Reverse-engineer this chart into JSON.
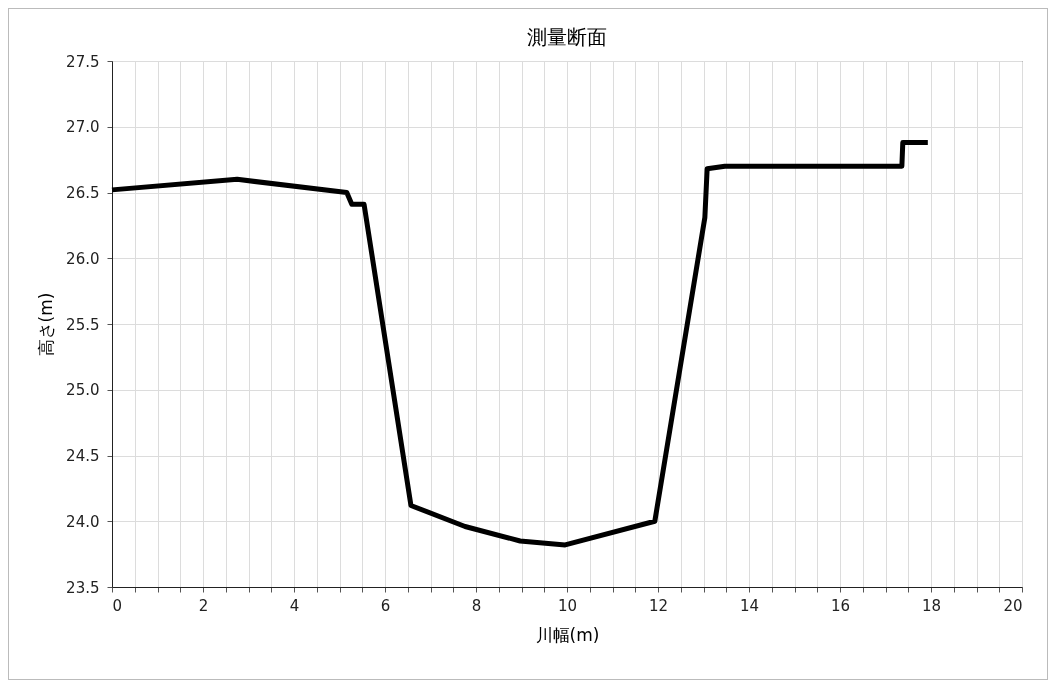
{
  "chart_data": {
    "type": "line",
    "title": "測量断面",
    "xlabel": "川幅(m)",
    "ylabel": "高さ(m)",
    "x": [
      0,
      2.75,
      5.16,
      5.27,
      5.54,
      6.57,
      7.76,
      8.97,
      9.96,
      11.93,
      13.03,
      13.08,
      13.47,
      17.36,
      17.38,
      17.93
    ],
    "series": [
      {
        "color": "#000000",
        "values": [
          26.52,
          26.6,
          26.5,
          26.41,
          26.41,
          24.12,
          23.96,
          23.85,
          23.82,
          24.0,
          26.31,
          26.68,
          26.7,
          26.7,
          26.88,
          26.88
        ]
      }
    ],
    "xlim": [
      0,
      20
    ],
    "xticks": [
      0,
      {
        "value": 0.5,
        "label": null
      },
      2,
      {
        "value": 1,
        "label": null
      },
      {
        "value": 1.5,
        "label": null
      },
      {
        "value": 2.5,
        "label": null
      },
      {
        "value": 3,
        "label": null
      },
      {
        "value": 3.5,
        "label": null
      },
      4,
      {
        "value": 4.5,
        "label": null
      },
      {
        "value": 5,
        "label": null
      },
      {
        "value": 5.5,
        "label": null
      },
      6,
      {
        "value": 6.5,
        "label": null
      },
      {
        "value": 7,
        "label": null
      },
      {
        "value": 7.5,
        "label": null
      },
      8,
      {
        "value": 8.5,
        "label": null
      },
      {
        "value": 9,
        "label": null
      },
      {
        "value": 9.5,
        "label": null
      },
      10,
      {
        "value": 10.5,
        "label": null
      },
      {
        "value": 11,
        "label": null
      },
      {
        "value": 11.5,
        "label": null
      },
      12,
      {
        "value": 12.5,
        "label": null
      },
      {
        "value": 13,
        "label": null
      },
      {
        "value": 13.5,
        "label": null
      },
      14,
      {
        "value": 14.5,
        "label": null
      },
      {
        "value": 15,
        "label": null
      },
      {
        "value": 15.5,
        "label": null
      },
      16,
      {
        "value": 16.5,
        "label": null
      },
      {
        "value": 17,
        "label": null
      },
      {
        "value": 17.5,
        "label": null
      },
      18,
      {
        "value": 18.5,
        "label": null
      },
      {
        "value": 19,
        "label": null
      },
      {
        "value": 19.5,
        "label": null
      },
      20
    ],
    "ylim": [
      23.5,
      27.5
    ],
    "yticks": [
      23.5,
      {
        "value": 24,
        "label": "24.0"
      },
      24.5,
      {
        "value": 25,
        "label": "25.0"
      },
      25.5,
      {
        "value": 26,
        "label": "26.0"
      },
      26.5,
      {
        "value": 27,
        "label": "27.0"
      },
      27.5
    ],
    "grid": true,
    "marker": "none",
    "line_style": "solid"
  }
}
